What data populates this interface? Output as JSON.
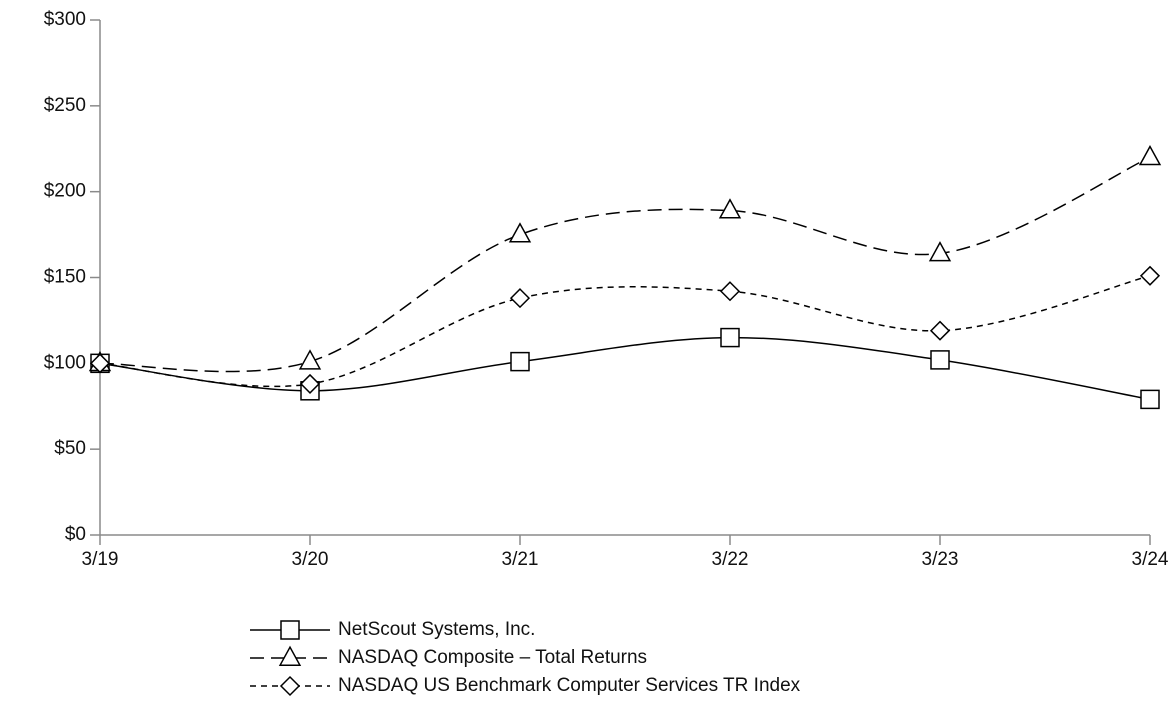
{
  "chart_data": {
    "type": "line",
    "categories": [
      "3/19",
      "3/20",
      "3/21",
      "3/22",
      "3/23",
      "3/24"
    ],
    "series": [
      {
        "name": "NetScout Systems, Inc.",
        "color": "#000000",
        "dash": "solid",
        "marker": "square",
        "values": [
          100,
          84,
          101,
          115,
          102,
          79
        ]
      },
      {
        "name": "NASDAQ Composite – Total Returns",
        "color": "#000000",
        "dash": "dashed",
        "marker": "triangle",
        "values": [
          100,
          101,
          175,
          189,
          164,
          220
        ]
      },
      {
        "name": "NASDAQ US Benchmark Computer Services TR Index",
        "color": "#000000",
        "dash": "dotted",
        "marker": "diamond",
        "values": [
          100,
          88,
          138,
          142,
          119,
          151
        ]
      }
    ],
    "ylim": [
      0,
      300
    ],
    "yticks": [
      {
        "value": 0,
        "label": "$0"
      },
      {
        "value": 50,
        "label": "$50"
      },
      {
        "value": 100,
        "label": "$100"
      },
      {
        "value": 150,
        "label": "$150"
      },
      {
        "value": 200,
        "label": "$200"
      },
      {
        "value": 250,
        "label": "$250"
      },
      {
        "value": 300,
        "label": "$300"
      }
    ],
    "grid": false
  }
}
